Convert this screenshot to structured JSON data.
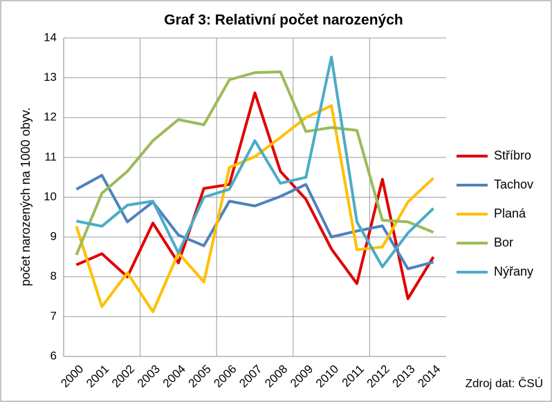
{
  "chart_data": {
    "type": "line",
    "title": "Graf 3: Relativní počet narozených",
    "y_label": "počet narozených na 1000 obyv.",
    "source": "Zdroj dat: ČSÚ",
    "categories": [
      "2000",
      "2001",
      "2002",
      "2003",
      "2004",
      "2005",
      "2006",
      "2007",
      "2008",
      "2009",
      "2010",
      "2011",
      "2012",
      "2013",
      "2014"
    ],
    "ylim": [
      6,
      14
    ],
    "yticks": [
      6,
      7,
      8,
      9,
      10,
      11,
      12,
      13,
      14
    ],
    "grid": true,
    "legend": "right",
    "series": [
      {
        "name": "Stříbro",
        "color": "#e00000",
        "values": [
          8.3,
          8.58,
          8.0,
          9.35,
          8.35,
          10.22,
          10.32,
          12.62,
          10.65,
          9.95,
          8.7,
          7.83,
          10.45,
          7.45,
          8.5
        ]
      },
      {
        "name": "Tachov",
        "color": "#4f81bd",
        "values": [
          10.2,
          10.55,
          9.38,
          9.88,
          9.05,
          8.78,
          9.9,
          9.78,
          10.02,
          10.32,
          9.0,
          9.15,
          9.28,
          8.2,
          8.37
        ]
      },
      {
        "name": "Planá",
        "color": "#ffc000",
        "values": [
          9.27,
          7.25,
          8.1,
          7.12,
          8.6,
          7.87,
          10.75,
          11.02,
          11.5,
          12.0,
          12.3,
          8.68,
          8.75,
          9.88,
          10.48
        ]
      },
      {
        "name": "Bor",
        "color": "#9bbb59",
        "values": [
          8.55,
          10.1,
          10.65,
          11.42,
          11.95,
          11.82,
          12.95,
          13.13,
          13.15,
          11.65,
          11.75,
          11.68,
          9.42,
          9.38,
          9.12
        ]
      },
      {
        "name": "Nýřany",
        "color": "#4bacc6",
        "values": [
          9.4,
          9.27,
          9.8,
          9.9,
          8.6,
          10.0,
          10.2,
          11.42,
          10.35,
          10.5,
          13.52,
          9.38,
          8.25,
          9.1,
          9.72
        ]
      }
    ]
  }
}
